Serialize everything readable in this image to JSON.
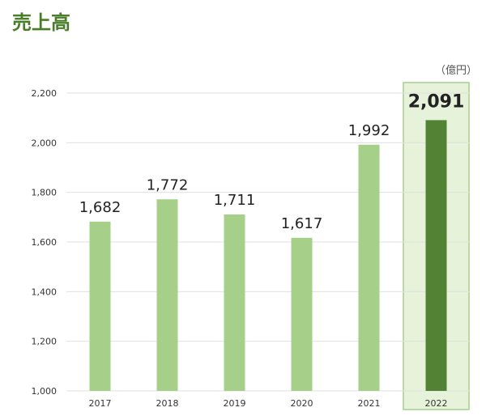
{
  "title": "売上高",
  "unit_label": "（億円）",
  "colors": {
    "title": "#4a7d2a",
    "bar": "#a6d08a",
    "bar_highlight": "#528234",
    "highlight_fill": "#e6f3da",
    "highlight_border": "#a6d08a",
    "grid": "#e0e0e0"
  },
  "chart_data": {
    "type": "bar",
    "categories": [
      "2017",
      "2018",
      "2019",
      "2020",
      "2021",
      "2022"
    ],
    "values": [
      1682,
      1772,
      1711,
      1617,
      1992,
      2091
    ],
    "data_labels": [
      "1,682",
      "1,772",
      "1,711",
      "1,617",
      "1,992",
      "2,091"
    ],
    "highlight_index": 5,
    "ylim": [
      1000,
      2200
    ],
    "yticks": [
      1000,
      1200,
      1400,
      1600,
      1800,
      2000,
      2200
    ],
    "ytick_labels": [
      "1,000",
      "1,200",
      "1,400",
      "1,600",
      "1,800",
      "2,000",
      "2,200"
    ],
    "grid": true,
    "legend": "none",
    "xlabel": "",
    "ylabel": ""
  }
}
